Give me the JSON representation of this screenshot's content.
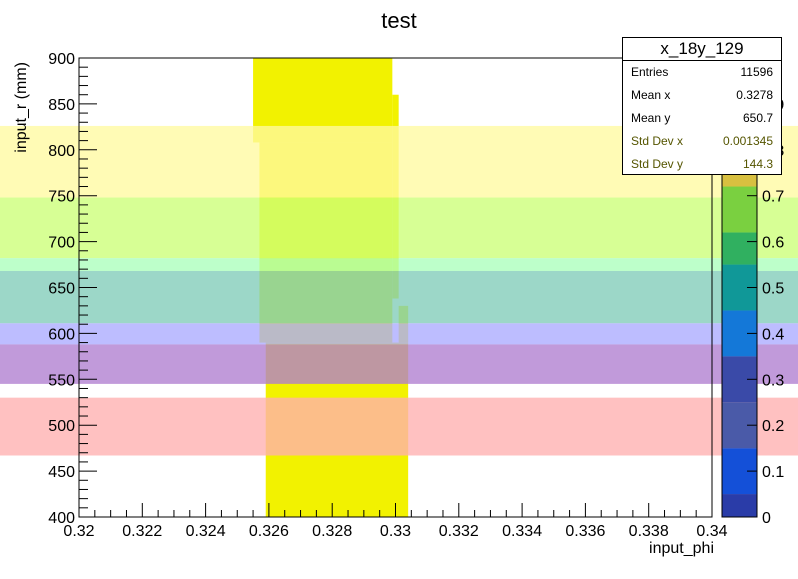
{
  "chart_data": {
    "type": "heatmap",
    "title": "test",
    "xlabel": "input_phi",
    "ylabel": "input_r (mm)",
    "xlim": [
      0.32,
      0.34
    ],
    "ylim": [
      400,
      900
    ],
    "zlim": [
      0,
      1
    ],
    "x_ticks": [
      "0.32",
      "0.322",
      "0.324",
      "0.326",
      "0.328",
      "0.33",
      "0.332",
      "0.334",
      "0.336",
      "0.338",
      "0.34"
    ],
    "y_ticks": [
      "400",
      "450",
      "500",
      "550",
      "600",
      "650",
      "700",
      "750",
      "800",
      "850",
      "900"
    ],
    "z_ticks": [
      "0",
      "0.1",
      "0.2",
      "0.3",
      "0.4",
      "0.5",
      "0.6",
      "0.7",
      "0.8",
      "0.9"
    ],
    "filled_region": [
      {
        "x0": 0.3255,
        "x1": 0.3299,
        "y0": 808,
        "y1": 900
      },
      {
        "x0": 0.3257,
        "x1": 0.3299,
        "y0": 590,
        "y1": 808
      },
      {
        "x0": 0.3299,
        "x1": 0.3301,
        "y0": 638,
        "y1": 860
      },
      {
        "x0": 0.3301,
        "x1": 0.3304,
        "y0": 590,
        "y1": 630
      },
      {
        "x0": 0.3259,
        "x1": 0.3304,
        "y0": 400,
        "y1": 590
      }
    ],
    "fill_value": 0.9,
    "overlay_bands": [
      {
        "y0": 748,
        "y1": 826,
        "color": "#fffaa0"
      },
      {
        "y0": 682,
        "y1": 748,
        "color": "#ccff77"
      },
      {
        "y0": 668,
        "y1": 682,
        "color": "#aaffbb"
      },
      {
        "y0": 611,
        "y1": 668,
        "color": "#80ccb8"
      },
      {
        "y0": 588,
        "y1": 611,
        "color": "#aaaaff"
      },
      {
        "y0": 545,
        "y1": 588,
        "color": "#b07ed0"
      },
      {
        "y0": 467,
        "y1": 530,
        "color": "#ffb0b0"
      }
    ],
    "palette": [
      {
        "z0": 0.0,
        "z1": 0.05,
        "color": "#2a3ca8"
      },
      {
        "z0": 0.05,
        "z1": 0.15,
        "color": "#1450d8"
      },
      {
        "z0": 0.15,
        "z1": 0.25,
        "color": "#4a5aa8"
      },
      {
        "z0": 0.25,
        "z1": 0.35,
        "color": "#3a4aa8"
      },
      {
        "z0": 0.35,
        "z1": 0.45,
        "color": "#1478d8"
      },
      {
        "z0": 0.45,
        "z1": 0.55,
        "color": "#109898"
      },
      {
        "z0": 0.55,
        "z1": 0.62,
        "color": "#30b060"
      },
      {
        "z0": 0.62,
        "z1": 0.72,
        "color": "#7ad040"
      },
      {
        "z0": 0.72,
        "z1": 0.85,
        "color": "#d8c040"
      },
      {
        "z0": 0.85,
        "z1": 1.0,
        "color": "#f0e030"
      }
    ]
  },
  "stats": {
    "title": "x_18y_129",
    "rows": [
      {
        "label": "Entries",
        "value": "11596",
        "color": "#000000"
      },
      {
        "label": "Mean x",
        "value": "0.3278",
        "color": "#000000"
      },
      {
        "label": "Mean y",
        "value": "650.7",
        "color": "#000000"
      },
      {
        "label": "Std Dev x",
        "value": "0.001345",
        "color": "#555500"
      },
      {
        "label": "Std Dev y",
        "value": "144.3",
        "color": "#555500"
      }
    ]
  },
  "colors": {
    "fill": "#f2f200",
    "axis": "#000000"
  }
}
